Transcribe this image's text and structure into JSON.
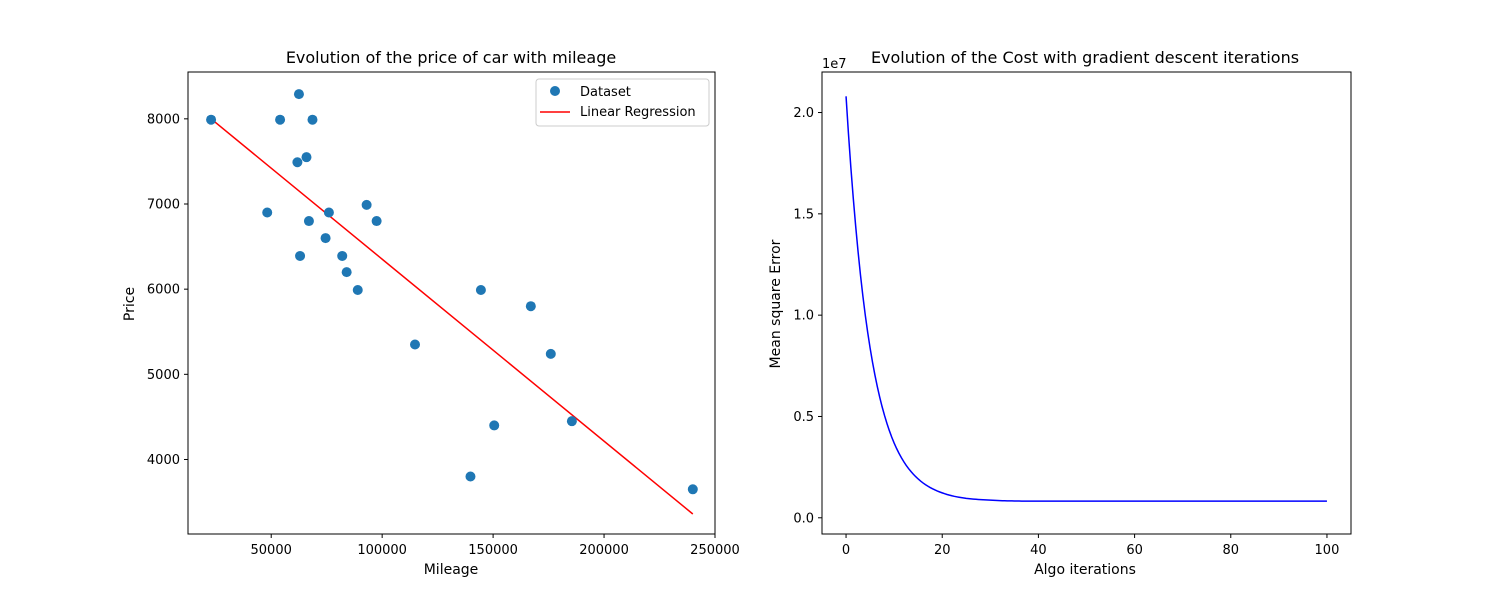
{
  "chart_data": [
    {
      "type": "scatter",
      "title": "Evolution of the price of car with mileage",
      "xlabel": "Mileage",
      "ylabel": "Price",
      "xlim": [
        12500,
        250000
      ],
      "ylim": [
        3125,
        8550
      ],
      "xticks": [
        50000,
        100000,
        150000,
        200000,
        250000
      ],
      "xtick_labels": [
        "50000",
        "100000",
        "150000",
        "200000",
        "250000"
      ],
      "yticks": [
        4000,
        5000,
        6000,
        7000,
        8000
      ],
      "ytick_labels": [
        "4000",
        "5000",
        "6000",
        "7000",
        "8000"
      ],
      "legend_position": "top-right",
      "grid": false,
      "series": [
        {
          "name": "Dataset",
          "kind": "scatter",
          "color": "#1f77b4",
          "points": [
            [
              22900,
              7990
            ],
            [
              48200,
              6900
            ],
            [
              54000,
              7990
            ],
            [
              61800,
              7490
            ],
            [
              62500,
              8290
            ],
            [
              63000,
              6390
            ],
            [
              65900,
              7550
            ],
            [
              67000,
              6800
            ],
            [
              68600,
              7990
            ],
            [
              74500,
              6600
            ],
            [
              76000,
              6900
            ],
            [
              82000,
              6390
            ],
            [
              84000,
              6200
            ],
            [
              89000,
              5990
            ],
            [
              93000,
              6990
            ],
            [
              97500,
              6800
            ],
            [
              114800,
              5350
            ],
            [
              139800,
              3800
            ],
            [
              144500,
              5990
            ],
            [
              150500,
              4400
            ],
            [
              167000,
              5800
            ],
            [
              176000,
              5240
            ],
            [
              185500,
              4450
            ],
            [
              240000,
              3650
            ]
          ]
        },
        {
          "name": "Linear Regression",
          "kind": "line",
          "color": "#ff0000",
          "points": [
            [
              22900,
              8000
            ],
            [
              240000,
              3360
            ]
          ]
        }
      ]
    },
    {
      "type": "line",
      "title": "Evolution of the Cost with gradient descent iterations",
      "xlabel": "Algo iterations",
      "ylabel": "Mean square Error",
      "y_offset_label": "1e7",
      "xlim": [
        -5,
        105
      ],
      "ylim": [
        -0.08,
        2.2
      ],
      "xticks": [
        0,
        20,
        40,
        60,
        80,
        100
      ],
      "xtick_labels": [
        "0",
        "20",
        "40",
        "60",
        "80",
        "100"
      ],
      "yticks": [
        0.0,
        0.5,
        1.0,
        1.5,
        2.0
      ],
      "ytick_labels": [
        "0.0",
        "0.5",
        "1.0",
        "1.5",
        "2.0"
      ],
      "grid": false,
      "series": [
        {
          "color": "#0000ff",
          "x": [
            0,
            2,
            4,
            6,
            8,
            10,
            12,
            14,
            16,
            18,
            20,
            25,
            30,
            35,
            40,
            50,
            60,
            70,
            80,
            90,
            100
          ],
          "values": [
            2.08,
            1.44,
            1.0,
            0.705,
            0.505,
            0.369,
            0.277,
            0.215,
            0.172,
            0.143,
            0.123,
            0.096,
            0.087,
            0.083,
            0.082,
            0.082,
            0.082,
            0.082,
            0.082,
            0.082,
            0.082
          ]
        }
      ]
    }
  ]
}
